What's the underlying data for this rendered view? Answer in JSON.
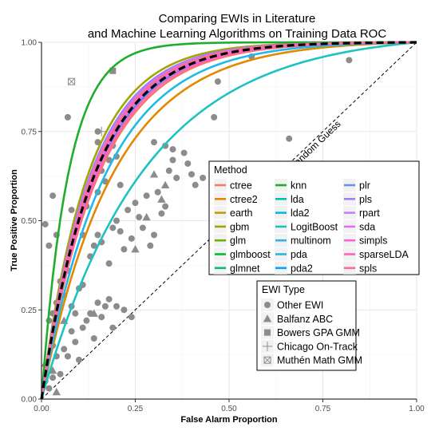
{
  "chart_data": {
    "type": "line",
    "title_line1": "Comparing EWIs in Literature",
    "title_line2": "and Machine Learning Algorithms on Training Data ROC",
    "xlabel": "False Alarm Proportion",
    "ylabel": "True Positive Proportion",
    "xlim": [
      0,
      1
    ],
    "ylim": [
      0,
      1
    ],
    "x_ticks": [
      "0.00",
      "0.25",
      "0.50",
      "0.75",
      "1.00"
    ],
    "y_ticks": [
      "0.00",
      "0.25",
      "0.50",
      "0.75",
      "1.00"
    ],
    "grid": true,
    "annotation": "Random Guess",
    "method_legend": {
      "title": "Method",
      "placement": "right-middle"
    },
    "series": [
      {
        "name": "ctree",
        "color": "#F8766D",
        "k": 6.5
      },
      {
        "name": "ctree2",
        "color": "#E58700",
        "k": 5.2
      },
      {
        "name": "earth",
        "color": "#C99800",
        "k": 7.0
      },
      {
        "name": "gbm",
        "color": "#A3A500",
        "k": 8.0
      },
      {
        "name": "glm",
        "color": "#6BB100",
        "k": 7.2
      },
      {
        "name": "glmboost",
        "color": "#00BA38",
        "k": 7.1
      },
      {
        "name": "glmnet",
        "color": "#00BF7D",
        "k": 7.3
      },
      {
        "name": "knn",
        "color": "#1FAD2E",
        "k": 14.0
      },
      {
        "name": "lda",
        "color": "#00C0AF",
        "k": 7.0
      },
      {
        "name": "lda2",
        "color": "#00BCD8",
        "k": 6.8
      },
      {
        "name": "LogitBoost",
        "color": "#1FC2C0",
        "k": 3.6
      },
      {
        "name": "multinom",
        "color": "#2EB7D9",
        "k": 7.0
      },
      {
        "name": "pda",
        "color": "#22B8E8",
        "k": 5.8
      },
      {
        "name": "pda2",
        "color": "#00A5FF",
        "k": 6.9
      },
      {
        "name": "plr",
        "color": "#6E8EF5",
        "k": 7.1
      },
      {
        "name": "pls",
        "color": "#A37EFA",
        "k": 7.6
      },
      {
        "name": "rpart",
        "color": "#C77CFF",
        "k": 7.4
      },
      {
        "name": "sda",
        "color": "#E76BF3",
        "k": 7.2
      },
      {
        "name": "simpls",
        "color": "#FA62DB",
        "k": 7.0
      },
      {
        "name": "sparseLDA",
        "color": "#FF62BC",
        "k": 6.7
      },
      {
        "name": "spls",
        "color": "#FF6C91",
        "k": 7.3
      }
    ],
    "mean_curve": {
      "color": "#000000",
      "style": "dashed",
      "k": 7.0
    },
    "ewi_legend": {
      "title": "EWI Type",
      "placement": "bottom-center",
      "entries": [
        {
          "name": "Other EWI",
          "shape": "circle"
        },
        {
          "name": "Balfanz ABC",
          "shape": "triangle"
        },
        {
          "name": "Bowers GPA GMM",
          "shape": "square"
        },
        {
          "name": "Chicago On-Track",
          "shape": "plus"
        },
        {
          "name": "Muthén Math GMM",
          "shape": "boxcross"
        }
      ]
    },
    "points_color": "#8c8c8c",
    "points": [
      {
        "shape": "circle",
        "x": 0.01,
        "y": 0.05
      },
      {
        "shape": "circle",
        "x": 0.02,
        "y": 0.03
      },
      {
        "shape": "circle",
        "x": 0.03,
        "y": 0.06
      },
      {
        "shape": "circle",
        "x": 0.03,
        "y": 0.15
      },
      {
        "shape": "circle",
        "x": 0.04,
        "y": 0.12
      },
      {
        "shape": "circle",
        "x": 0.05,
        "y": 0.07
      },
      {
        "shape": "circle",
        "x": 0.06,
        "y": 0.14
      },
      {
        "shape": "circle",
        "x": 0.07,
        "y": 0.12
      },
      {
        "shape": "circle",
        "x": 0.08,
        "y": 0.19
      },
      {
        "shape": "circle",
        "x": 0.09,
        "y": 0.16
      },
      {
        "shape": "circle",
        "x": 0.1,
        "y": 0.11
      },
      {
        "shape": "circle",
        "x": 0.11,
        "y": 0.2
      },
      {
        "shape": "circle",
        "x": 0.12,
        "y": 0.22
      },
      {
        "shape": "circle",
        "x": 0.13,
        "y": 0.24
      },
      {
        "shape": "circle",
        "x": 0.14,
        "y": 0.17
      },
      {
        "shape": "circle",
        "x": 0.15,
        "y": 0.27
      },
      {
        "shape": "circle",
        "x": 0.16,
        "y": 0.23
      },
      {
        "shape": "circle",
        "x": 0.17,
        "y": 0.26
      },
      {
        "shape": "circle",
        "x": 0.18,
        "y": 0.28
      },
      {
        "shape": "circle",
        "x": 0.19,
        "y": 0.2
      },
      {
        "shape": "circle",
        "x": 0.2,
        "y": 0.26
      },
      {
        "shape": "circle",
        "x": 0.22,
        "y": 0.25
      },
      {
        "shape": "circle",
        "x": 0.24,
        "y": 0.23
      },
      {
        "shape": "circle",
        "x": 0.1,
        "y": 0.31
      },
      {
        "shape": "circle",
        "x": 0.11,
        "y": 0.32
      },
      {
        "shape": "circle",
        "x": 0.13,
        "y": 0.4
      },
      {
        "shape": "circle",
        "x": 0.14,
        "y": 0.43
      },
      {
        "shape": "circle",
        "x": 0.15,
        "y": 0.46
      },
      {
        "shape": "circle",
        "x": 0.16,
        "y": 0.44
      },
      {
        "shape": "circle",
        "x": 0.18,
        "y": 0.38
      },
      {
        "shape": "circle",
        "x": 0.19,
        "y": 0.48
      },
      {
        "shape": "circle",
        "x": 0.2,
        "y": 0.5
      },
      {
        "shape": "circle",
        "x": 0.21,
        "y": 0.47
      },
      {
        "shape": "circle",
        "x": 0.22,
        "y": 0.42
      },
      {
        "shape": "circle",
        "x": 0.23,
        "y": 0.53
      },
      {
        "shape": "circle",
        "x": 0.24,
        "y": 0.45
      },
      {
        "shape": "circle",
        "x": 0.25,
        "y": 0.55
      },
      {
        "shape": "circle",
        "x": 0.26,
        "y": 0.51
      },
      {
        "shape": "circle",
        "x": 0.27,
        "y": 0.48
      },
      {
        "shape": "circle",
        "x": 0.28,
        "y": 0.57
      },
      {
        "shape": "circle",
        "x": 0.29,
        "y": 0.43
      },
      {
        "shape": "circle",
        "x": 0.3,
        "y": 0.46
      },
      {
        "shape": "circle",
        "x": 0.31,
        "y": 0.58
      },
      {
        "shape": "circle",
        "x": 0.32,
        "y": 0.52
      },
      {
        "shape": "circle",
        "x": 0.33,
        "y": 0.54
      },
      {
        "shape": "circle",
        "x": 0.34,
        "y": 0.64
      },
      {
        "shape": "circle",
        "x": 0.35,
        "y": 0.67
      },
      {
        "shape": "circle",
        "x": 0.36,
        "y": 0.62
      },
      {
        "shape": "circle",
        "x": 0.38,
        "y": 0.69
      },
      {
        "shape": "circle",
        "x": 0.39,
        "y": 0.66
      },
      {
        "shape": "circle",
        "x": 0.4,
        "y": 0.63
      },
      {
        "shape": "circle",
        "x": 0.41,
        "y": 0.6
      },
      {
        "shape": "circle",
        "x": 0.43,
        "y": 0.62
      },
      {
        "shape": "circle",
        "x": 0.13,
        "y": 0.59
      },
      {
        "shape": "circle",
        "x": 0.14,
        "y": 0.62
      },
      {
        "shape": "circle",
        "x": 0.15,
        "y": 0.58
      },
      {
        "shape": "circle",
        "x": 0.16,
        "y": 0.64
      },
      {
        "shape": "circle",
        "x": 0.17,
        "y": 0.61
      },
      {
        "shape": "circle",
        "x": 0.18,
        "y": 0.67
      },
      {
        "shape": "circle",
        "x": 0.2,
        "y": 0.68
      },
      {
        "shape": "circle",
        "x": 0.21,
        "y": 0.6
      },
      {
        "shape": "circle",
        "x": 0.15,
        "y": 0.72
      },
      {
        "shape": "circle",
        "x": 0.19,
        "y": 0.71
      },
      {
        "shape": "circle",
        "x": 0.08,
        "y": 0.53
      },
      {
        "shape": "circle",
        "x": 0.09,
        "y": 0.49
      },
      {
        "shape": "circle",
        "x": 0.1,
        "y": 0.51
      },
      {
        "shape": "circle",
        "x": 0.11,
        "y": 0.46
      },
      {
        "shape": "circle",
        "x": 0.12,
        "y": 0.54
      },
      {
        "shape": "circle",
        "x": 0.05,
        "y": 0.33
      },
      {
        "shape": "circle",
        "x": 0.06,
        "y": 0.29
      },
      {
        "shape": "circle",
        "x": 0.07,
        "y": 0.36
      },
      {
        "shape": "circle",
        "x": 0.08,
        "y": 0.26
      },
      {
        "shape": "circle",
        "x": 0.09,
        "y": 0.24
      },
      {
        "shape": "circle",
        "x": 0.02,
        "y": 0.22
      },
      {
        "shape": "circle",
        "x": 0.03,
        "y": 0.24
      },
      {
        "shape": "circle",
        "x": 0.04,
        "y": 0.27
      },
      {
        "shape": "circle",
        "x": 0.02,
        "y": 0.43
      },
      {
        "shape": "circle",
        "x": 0.04,
        "y": 0.46
      },
      {
        "shape": "circle",
        "x": 0.01,
        "y": 0.49
      },
      {
        "shape": "circle",
        "x": 0.03,
        "y": 0.57
      },
      {
        "shape": "circle",
        "x": 0.07,
        "y": 0.79
      },
      {
        "shape": "circle",
        "x": 0.15,
        "y": 0.75
      },
      {
        "shape": "circle",
        "x": 0.46,
        "y": 0.79
      },
      {
        "shape": "circle",
        "x": 0.47,
        "y": 0.89
      },
      {
        "shape": "circle",
        "x": 0.56,
        "y": 0.96
      },
      {
        "shape": "circle",
        "x": 0.66,
        "y": 0.73
      },
      {
        "shape": "circle",
        "x": 0.82,
        "y": 0.95
      },
      {
        "shape": "circle",
        "x": 0.3,
        "y": 0.72
      },
      {
        "shape": "circle",
        "x": 0.33,
        "y": 0.71
      },
      {
        "shape": "circle",
        "x": 0.35,
        "y": 0.7
      },
      {
        "shape": "triangle",
        "x": 0.01,
        "y": 0.1
      },
      {
        "shape": "triangle",
        "x": 0.03,
        "y": 0.08
      },
      {
        "shape": "triangle",
        "x": 0.04,
        "y": 0.02
      },
      {
        "shape": "triangle",
        "x": 0.06,
        "y": 0.22
      },
      {
        "shape": "triangle",
        "x": 0.14,
        "y": 0.24
      },
      {
        "shape": "triangle",
        "x": 0.25,
        "y": 0.42
      },
      {
        "shape": "triangle",
        "x": 0.28,
        "y": 0.51
      },
      {
        "shape": "triangle",
        "x": 0.3,
        "y": 0.63
      },
      {
        "shape": "triangle",
        "x": 0.32,
        "y": 0.56
      },
      {
        "shape": "triangle",
        "x": 0.33,
        "y": 0.6
      },
      {
        "shape": "square",
        "x": 0.19,
        "y": 0.92
      },
      {
        "shape": "plus",
        "x": 0.16,
        "y": 0.75
      },
      {
        "shape": "boxcross",
        "x": 0.08,
        "y": 0.89
      }
    ]
  }
}
